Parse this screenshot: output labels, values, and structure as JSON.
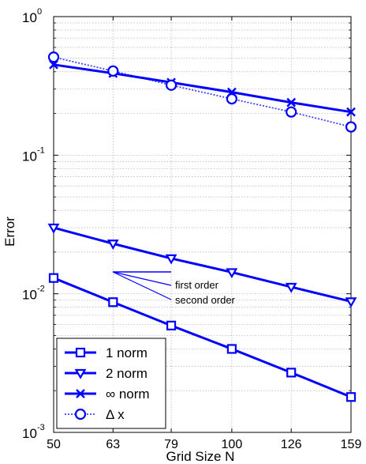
{
  "chart_data": {
    "type": "line",
    "title": "",
    "xlabel": "Grid Size N",
    "ylabel": "Error",
    "x": [
      50,
      63,
      79,
      100,
      126,
      159
    ],
    "x_tick_labels": [
      "50",
      "63",
      "79",
      "100",
      "126",
      "159"
    ],
    "xscale": "log",
    "yscale": "log",
    "xlim": [
      50,
      159
    ],
    "ylim": [
      0.001,
      1
    ],
    "y_ticks": [
      {
        "value": 1,
        "base": "10",
        "exp": "0"
      },
      {
        "value": 0.1,
        "base": "10",
        "exp": "-1"
      },
      {
        "value": 0.01,
        "base": "10",
        "exp": "-2"
      },
      {
        "value": 0.001,
        "base": "10",
        "exp": "-3"
      }
    ],
    "grid": true,
    "legend_position": "bottom-left",
    "series": [
      {
        "name": "1 norm",
        "marker": "square",
        "style": "solid",
        "color": "#0000ff",
        "values": [
          0.013,
          0.0087,
          0.0059,
          0.004,
          0.0027,
          0.0018
        ]
      },
      {
        "name": "2 norm",
        "marker": "triangle-down",
        "style": "solid",
        "color": "#0000ff",
        "values": [
          0.03,
          0.023,
          0.018,
          0.0143,
          0.0112,
          0.0088
        ]
      },
      {
        "name": "∞ norm",
        "marker": "x",
        "style": "solid",
        "color": "#0000ff",
        "values": [
          0.45,
          0.39,
          0.335,
          0.285,
          0.24,
          0.205
        ]
      },
      {
        "name": "Δ x",
        "marker": "circle",
        "style": "dotted",
        "color": "#0000ff",
        "values": [
          0.51,
          0.405,
          0.32,
          0.255,
          0.205,
          0.16
        ]
      }
    ],
    "annotations": [
      {
        "text": "first order"
      },
      {
        "text": "second order"
      }
    ]
  }
}
